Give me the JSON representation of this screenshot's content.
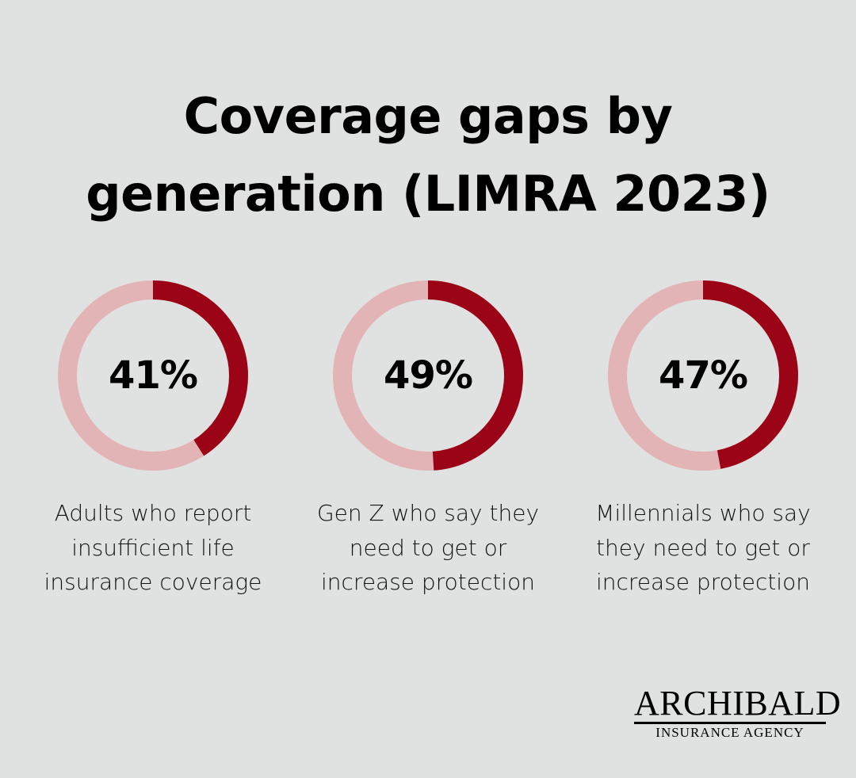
{
  "title_lines": [
    "Coverage gaps by",
    "generation (LIMRA 2023)"
  ],
  "colors": {
    "background": "#e0e2e1",
    "filled": "#9b0416",
    "remaining": "#e3b4b6"
  },
  "chart_data": [
    {
      "type": "pie",
      "style": "donut",
      "values": [
        41,
        59
      ],
      "label": "41%",
      "caption": [
        "Adults who report",
        "insufficient life",
        "insurance coverage"
      ]
    },
    {
      "type": "pie",
      "style": "donut",
      "values": [
        49,
        51
      ],
      "label": "49%",
      "caption": [
        "Gen Z who say they",
        "need to get or",
        "increase protection"
      ]
    },
    {
      "type": "pie",
      "style": "donut",
      "values": [
        47,
        53
      ],
      "label": "47%",
      "caption": [
        "Millennials who say",
        "they need to get or",
        "increase protection"
      ]
    }
  ],
  "logo": {
    "name": "ARCHIBALD",
    "tagline": "INSURANCE AGENCY"
  }
}
